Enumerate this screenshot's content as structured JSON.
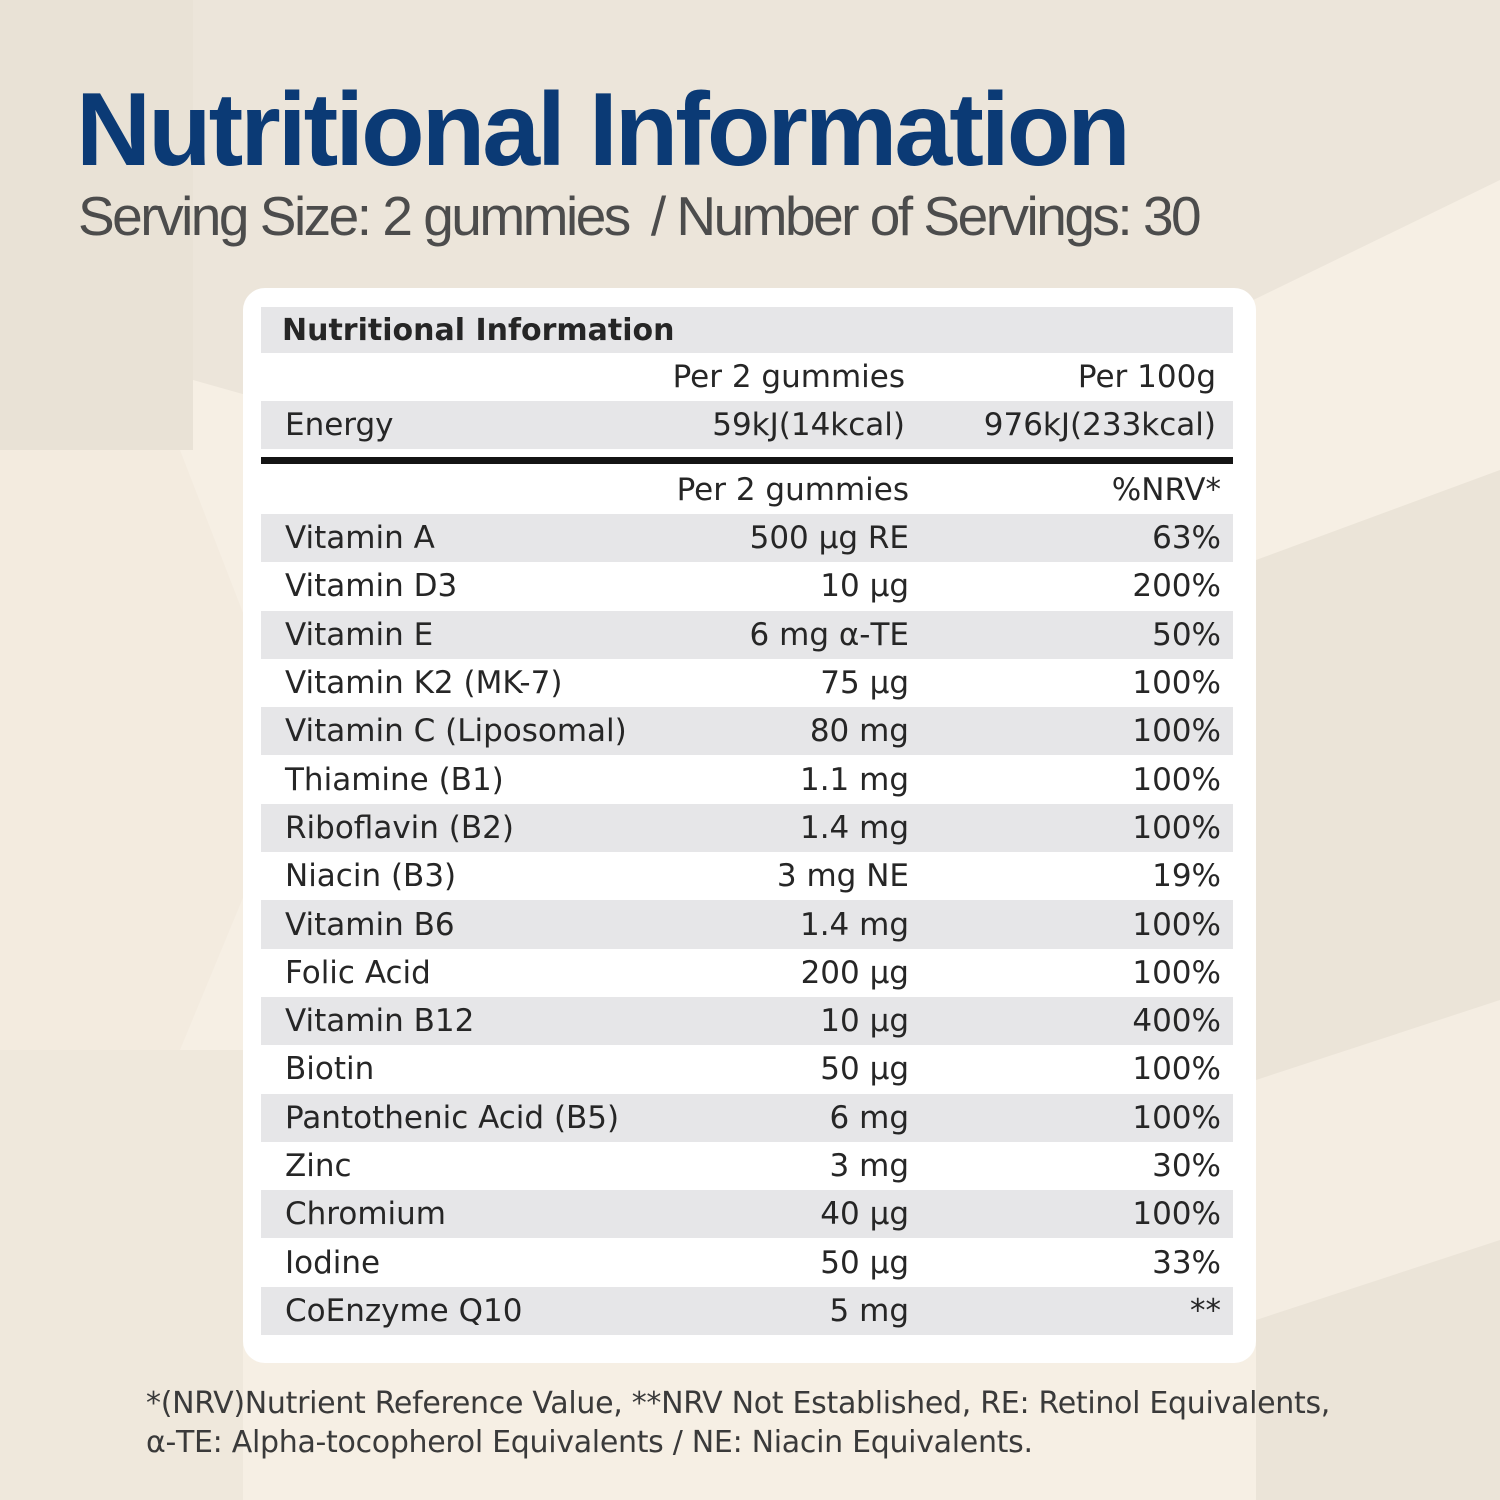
{
  "header": {
    "title": "Nutritional Information",
    "serving_size": "Serving Size: 2 gummies",
    "servings": "/ Number of Servings: 30"
  },
  "table": {
    "title": "Nutritional Information",
    "energy_header": {
      "col_serving": "Per 2 gummies",
      "col_100g": "Per 100g"
    },
    "energy": {
      "label": "Energy",
      "per_serving": "59kJ(14kcal)",
      "per_100g": "976kJ(233kcal)"
    },
    "nutrient_header": {
      "col_serving": "Per 2 gummies",
      "col_nrv": "%NRV*"
    },
    "nutrients": [
      {
        "name": "Vitamin A",
        "amount": "500 µg RE",
        "nrv": "63%"
      },
      {
        "name": "Vitamin D3",
        "amount": "10 µg",
        "nrv": "200%"
      },
      {
        "name": "Vitamin E",
        "amount": "6 mg α-TE",
        "nrv": "50%"
      },
      {
        "name": "Vitamin K2 (MK-7)",
        "amount": "75 µg",
        "nrv": "100%"
      },
      {
        "name": "Vitamin C (Liposomal)",
        "amount": "80 mg",
        "nrv": "100%"
      },
      {
        "name": "Thiamine (B1)",
        "amount": "1.1 mg",
        "nrv": "100%"
      },
      {
        "name": "Riboflavin (B2)",
        "amount": "1.4 mg",
        "nrv": "100%"
      },
      {
        "name": "Niacin (B3)",
        "amount": "3 mg NE",
        "nrv": "19%"
      },
      {
        "name": "Vitamin B6",
        "amount": "1.4 mg",
        "nrv": "100%"
      },
      {
        "name": "Folic Acid",
        "amount": "200 µg",
        "nrv": "100%"
      },
      {
        "name": "Vitamin B12",
        "amount": "10 µg",
        "nrv": "400%"
      },
      {
        "name": "Biotin",
        "amount": "50 µg",
        "nrv": "100%"
      },
      {
        "name": "Pantothenic Acid (B5)",
        "amount": "6 mg",
        "nrv": "100%"
      },
      {
        "name": "Zinc",
        "amount": "3 mg",
        "nrv": "30%"
      },
      {
        "name": "Chromium",
        "amount": "40 µg",
        "nrv": "100%"
      },
      {
        "name": "Iodine",
        "amount": "50 µg",
        "nrv": "33%"
      },
      {
        "name": "CoEnzyme Q10",
        "amount": "5 mg",
        "nrv": "**"
      }
    ]
  },
  "footnote": {
    "line1": "*(NRV)Nutrient Reference Value, **NRV Not Established, RE: Retinol Equivalents,",
    "line2": "α-TE: Alpha-tocopherol Equivalents / NE: Niacin Equivalents."
  },
  "colors": {
    "title": "#0b3a75",
    "background": "#f6efe4",
    "background_shape": "#e9e2d6",
    "row_shade": "#e6e6e8"
  }
}
